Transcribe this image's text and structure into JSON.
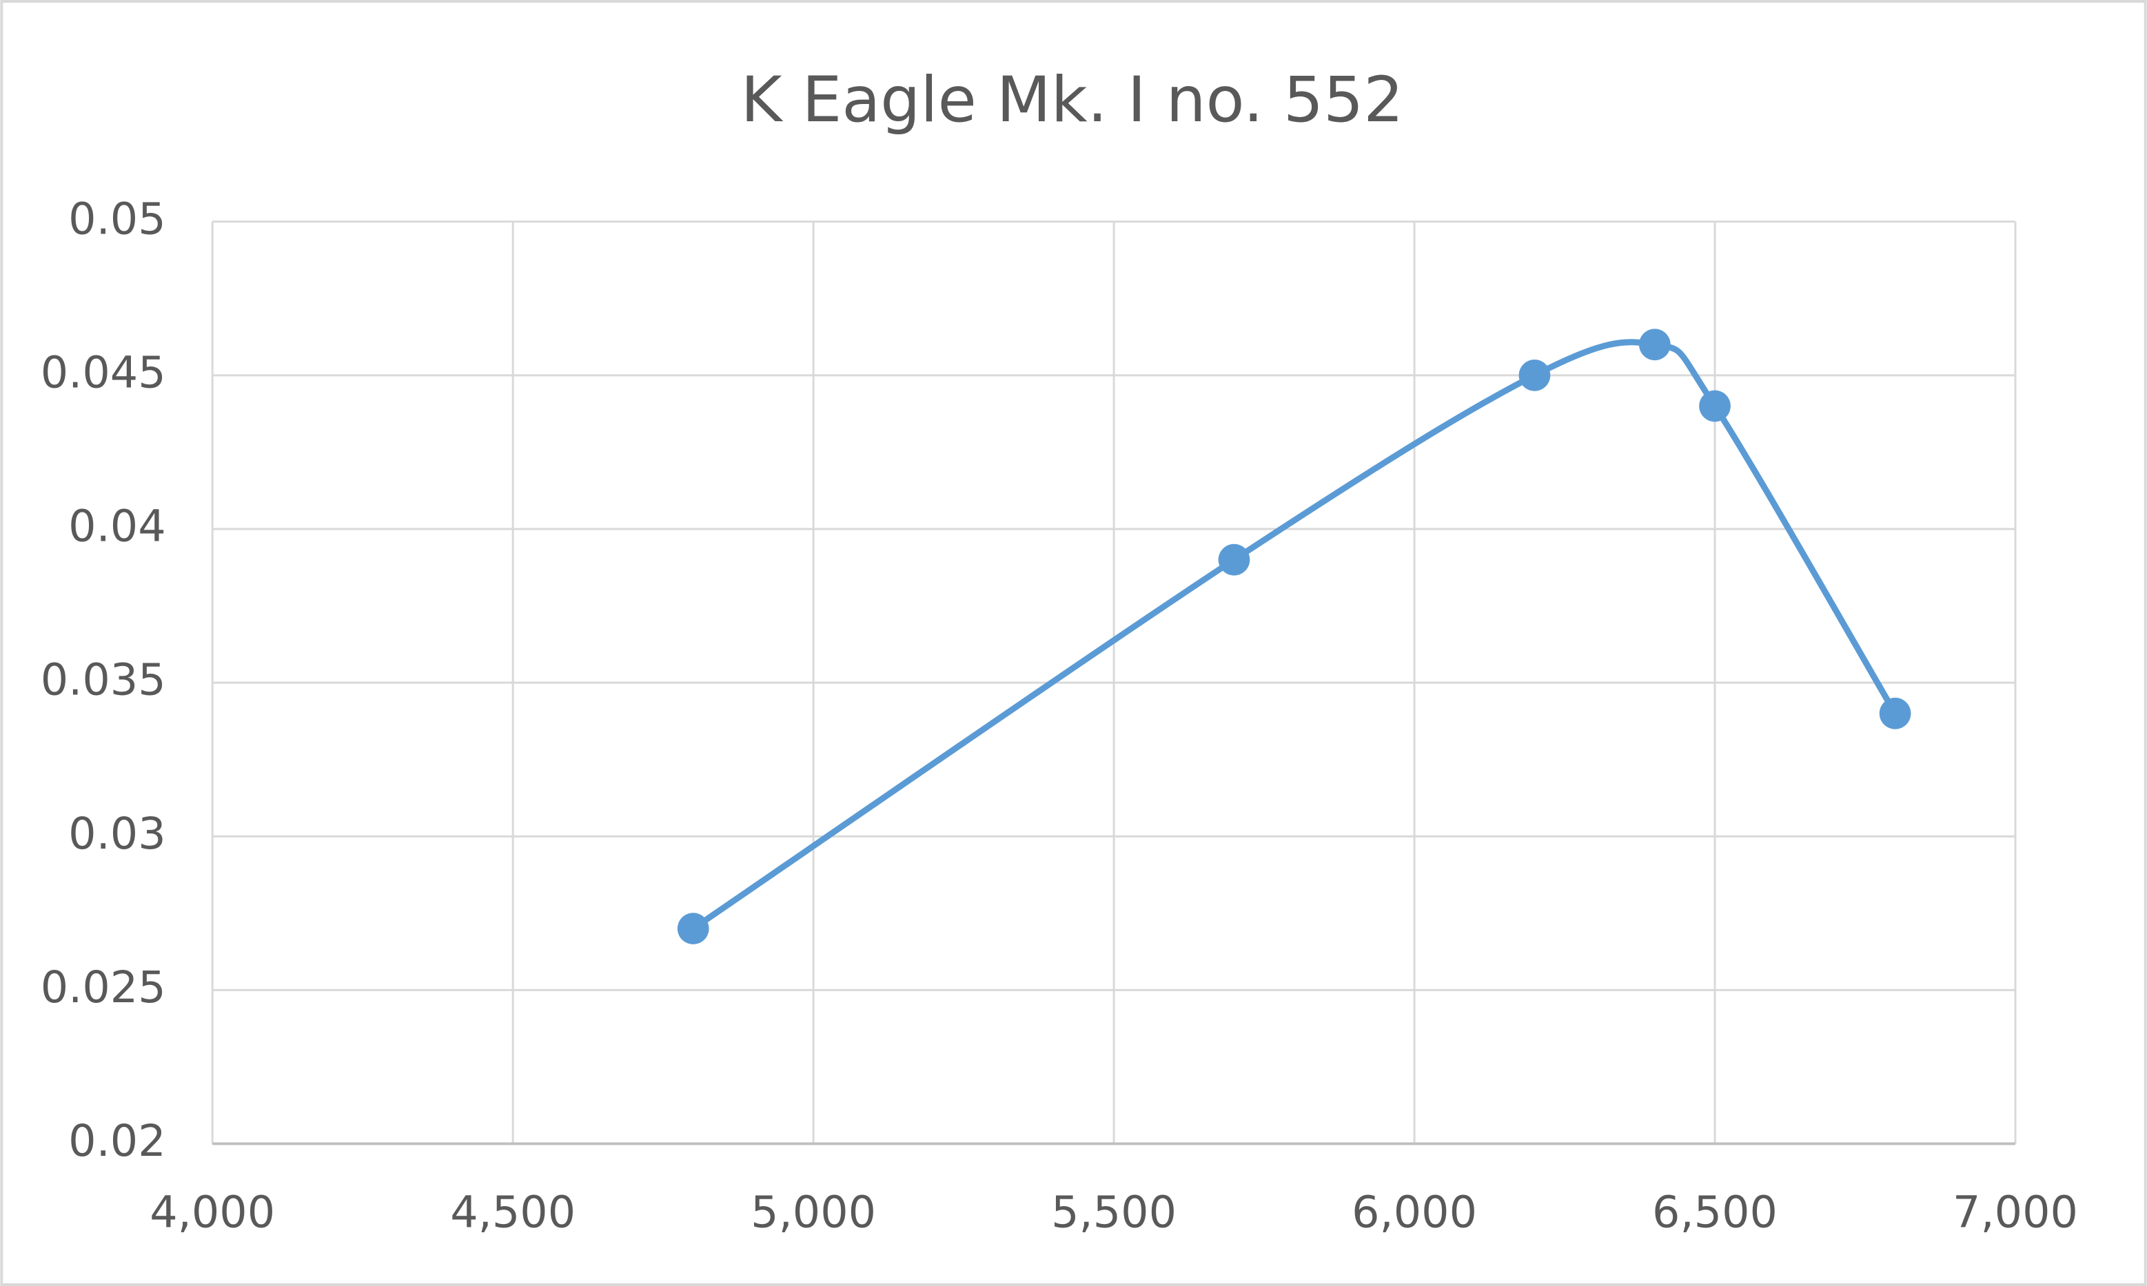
{
  "chart_data": {
    "type": "line",
    "title": "K Eagle Mk. I no. 552",
    "x": [
      4800,
      5700,
      6200,
      6400,
      6500,
      6800
    ],
    "series": [
      {
        "color": "#5b9bd5",
        "values": [
          0.027,
          0.039,
          0.045,
          0.046,
          0.044,
          0.034
        ]
      }
    ],
    "smooth": true,
    "markers": true,
    "grid": true,
    "xlim": [
      4000,
      7000
    ],
    "xticks": [
      {
        "value": 4000,
        "label": "4,000"
      },
      {
        "value": 4500,
        "label": "4,500"
      },
      {
        "value": 5000,
        "label": "5,000"
      },
      {
        "value": 5500,
        "label": "5,500"
      },
      {
        "value": 6000,
        "label": "6,000"
      },
      {
        "value": 6500,
        "label": "6,500"
      },
      {
        "value": 7000,
        "label": "7,000"
      }
    ],
    "ylim": [
      0.02,
      0.05
    ],
    "yticks": [
      0.02,
      0.025,
      0.03,
      0.035,
      0.04,
      0.045,
      0.05
    ]
  }
}
